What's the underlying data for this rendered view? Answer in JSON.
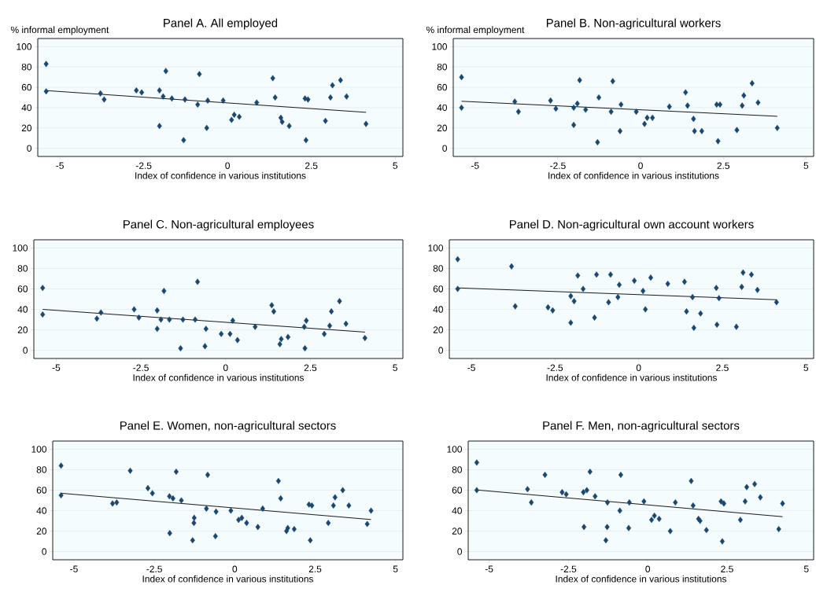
{
  "chart_data": [
    {
      "type": "scatter",
      "title": "Panel A. All employed",
      "ylabel": "% informal employment",
      "xlabel": "Index of confidence in various institutions",
      "xlim": [
        -5.66,
        5.23
      ],
      "ylim": [
        -8,
        108
      ],
      "xticks": [
        -5,
        -2.5,
        0,
        2.5,
        5
      ],
      "yticks": [
        0,
        20,
        40,
        60,
        80,
        100
      ],
      "grid": "y",
      "series": [
        {
          "marker": "diamond",
          "color": "#1a476f",
          "x": [
            -5.41,
            -5.41,
            -3.79,
            -3.68,
            -2.72,
            -2.56,
            -2.03,
            -2.03,
            -1.92,
            -1.84,
            -1.66,
            -1.31,
            -1.27,
            -0.84,
            -0.89,
            -0.62,
            -0.59,
            -0.13,
            0.12,
            0.2,
            0.35,
            0.87,
            1.35,
            1.42,
            1.59,
            1.63,
            1.84,
            2.31,
            2.4,
            2.34,
            2.92,
            3.07,
            3.13,
            3.37,
            3.55,
            4.13
          ],
          "values": [
            83,
            56,
            54,
            48,
            57,
            55,
            57,
            22,
            51,
            76,
            49,
            8,
            48,
            73,
            43,
            20,
            47,
            47,
            28,
            33,
            31,
            45,
            69,
            50,
            30,
            26,
            22,
            49,
            48,
            8,
            27,
            50,
            62,
            67,
            51,
            24
          ]
        },
        {
          "type": "line",
          "marker": "none",
          "color": "#000000",
          "x": [
            -5.41,
            4.13
          ],
          "values": [
            56.8,
            35.4
          ]
        }
      ]
    },
    {
      "type": "scatter",
      "title": "Panel B. Non-agricultural workers",
      "ylabel": "% informal employment",
      "xlabel": "Index of confidence in various institutions",
      "xlim": [
        -5.66,
        5.23
      ],
      "ylim": [
        -8,
        108
      ],
      "xticks": [
        -5,
        -2.5,
        0,
        2.5,
        5
      ],
      "yticks": [
        0,
        20,
        40,
        60,
        80,
        100
      ],
      "grid": "y",
      "series": [
        {
          "marker": "diamond",
          "color": "#1a476f",
          "x": [
            -5.41,
            -5.41,
            -3.8,
            -3.69,
            -2.72,
            -2.56,
            -2.02,
            -2.02,
            -1.91,
            -1.84,
            -1.66,
            -1.3,
            -1.26,
            -0.84,
            -0.89,
            -0.62,
            -0.59,
            -0.13,
            0.12,
            0.2,
            0.36,
            0.87,
            1.36,
            1.42,
            1.6,
            1.63,
            1.85,
            2.3,
            2.4,
            2.34,
            2.91,
            3.07,
            3.12,
            3.37,
            3.55,
            4.13
          ],
          "values": [
            70,
            40,
            46,
            36,
            47,
            39,
            40,
            23,
            44,
            67,
            38,
            6,
            50,
            66,
            36,
            17,
            43,
            36,
            24,
            30,
            30,
            41,
            55,
            42,
            29,
            17,
            17,
            43,
            43,
            7,
            18,
            42,
            52,
            64,
            45,
            20
          ]
        },
        {
          "type": "line",
          "marker": "none",
          "color": "#000000",
          "x": [
            -5.41,
            4.13
          ],
          "values": [
            46.3,
            31.5
          ]
        }
      ]
    },
    {
      "type": "scatter",
      "title": "Panel C. Non-agricultural employees",
      "xlabel": "Index of confidence in various institutions",
      "xlim": [
        -5.66,
        5.23
      ],
      "ylim": [
        -8,
        108
      ],
      "xticks": [
        -5,
        -2.5,
        0,
        2.5,
        5
      ],
      "yticks": [
        0,
        20,
        40,
        60,
        80,
        100
      ],
      "grid": "y",
      "series": [
        {
          "marker": "diamond",
          "color": "#1a476f",
          "x": [
            -5.4,
            -5.4,
            -3.8,
            -3.68,
            -2.7,
            -2.56,
            -2.02,
            -2.02,
            -1.91,
            -1.82,
            -1.66,
            -1.33,
            -1.26,
            -0.83,
            -0.9,
            -0.61,
            -0.58,
            -0.13,
            0.13,
            0.21,
            0.35,
            0.87,
            1.36,
            1.42,
            1.6,
            1.64,
            1.84,
            2.32,
            2.38,
            2.34,
            2.91,
            3.07,
            3.12,
            3.36,
            3.55,
            4.11
          ],
          "values": [
            61,
            35,
            31,
            37,
            40,
            32,
            39,
            21,
            30,
            58,
            30,
            2,
            30,
            67,
            30,
            4,
            21,
            16,
            16,
            29,
            10,
            23,
            44,
            38,
            6,
            11,
            13,
            23,
            29,
            2,
            16,
            24,
            38,
            48,
            26,
            12
          ]
        },
        {
          "type": "line",
          "marker": "none",
          "color": "#000000",
          "x": [
            -5.4,
            4.11
          ],
          "values": [
            40,
            17.8
          ]
        }
      ]
    },
    {
      "type": "scatter",
      "title": "Panel D. Non-agricultural own account workers",
      "xlabel": "Index of confidence in various institutions",
      "xlim": [
        -5.66,
        5.23
      ],
      "ylim": [
        -8,
        108
      ],
      "xticks": [
        -5,
        -2.5,
        0,
        2.5,
        5
      ],
      "yticks": [
        0,
        20,
        40,
        60,
        80,
        100
      ],
      "grid": "y",
      "series": [
        {
          "marker": "diamond",
          "color": "#1a476f",
          "x": [
            -5.41,
            -5.41,
            -3.8,
            -3.69,
            -2.71,
            -2.57,
            -2.03,
            -2.03,
            -1.93,
            -1.82,
            -1.66,
            -1.32,
            -1.26,
            -0.84,
            -0.9,
            -0.62,
            -0.58,
            -0.13,
            0.13,
            0.2,
            0.36,
            0.87,
            1.37,
            1.43,
            1.61,
            1.65,
            1.85,
            2.32,
            2.4,
            2.34,
            2.92,
            3.08,
            3.12,
            3.37,
            3.55,
            4.12
          ],
          "values": [
            89,
            60,
            82,
            43,
            42,
            39,
            53,
            27,
            48,
            73,
            60,
            32,
            74,
            74,
            47,
            52,
            64,
            68,
            58,
            40,
            71,
            65,
            67,
            38,
            52,
            22,
            36,
            61,
            51,
            25,
            23,
            62,
            76,
            74,
            59,
            47
          ]
        },
        {
          "type": "line",
          "marker": "none",
          "color": "#000000",
          "x": [
            -5.41,
            4.12
          ],
          "values": [
            61,
            49.4
          ]
        }
      ]
    },
    {
      "type": "scatter",
      "title": "Panel E. Women, non-agricultural sectors",
      "xlabel": "Index of confidence in various institutions",
      "xlim": [
        -5.66,
        5.23
      ],
      "ylim": [
        -8,
        108
      ],
      "xticks": [
        -5,
        -2.5,
        0,
        2.5,
        5
      ],
      "yticks": [
        0,
        20,
        40,
        60,
        80,
        100
      ],
      "grid": "y",
      "series": [
        {
          "marker": "diamond",
          "color": "#1a476f",
          "x": [
            -5.4,
            -5.4,
            -3.8,
            -3.67,
            -3.25,
            -2.7,
            -2.56,
            -2.03,
            -2.02,
            -1.92,
            -1.82,
            -1.66,
            -1.31,
            -1.27,
            -1.26,
            -0.88,
            -0.84,
            -0.6,
            -0.58,
            -0.12,
            0.12,
            0.22,
            0.37,
            0.72,
            0.87,
            1.36,
            1.43,
            1.61,
            1.65,
            1.85,
            2.31,
            2.4,
            2.35,
            2.91,
            3.07,
            3.12,
            3.36,
            3.55,
            4.12,
            4.24
          ],
          "values": [
            84,
            55,
            47,
            48,
            79,
            62,
            57,
            54,
            18,
            52,
            78,
            50,
            11,
            28,
            33,
            42,
            75,
            15,
            39,
            40,
            31,
            33,
            28,
            24,
            42,
            69,
            52,
            20,
            23,
            22,
            46,
            45,
            11,
            28,
            45,
            53,
            60,
            45,
            27,
            40
          ]
        },
        {
          "type": "line",
          "marker": "none",
          "color": "#000000",
          "x": [
            -5.4,
            4.24
          ],
          "values": [
            57,
            31.3
          ]
        }
      ]
    },
    {
      "type": "scatter",
      "title": "Panel F. Men, non-agricultural sectors",
      "xlabel": "Index of confidence in various institutions",
      "xlim": [
        -5.66,
        5.23
      ],
      "ylim": [
        -8,
        108
      ],
      "xticks": [
        -5,
        -2.5,
        0,
        2.5,
        5
      ],
      "yticks": [
        0,
        20,
        40,
        60,
        80,
        100
      ],
      "grid": "y",
      "series": [
        {
          "marker": "diamond",
          "color": "#1a476f",
          "x": [
            -5.39,
            -5.39,
            -3.79,
            -3.67,
            -3.24,
            -2.7,
            -2.57,
            -2.03,
            -2.01,
            -1.92,
            -1.82,
            -1.66,
            -1.32,
            -1.28,
            -1.27,
            -0.88,
            -0.85,
            -0.6,
            -0.58,
            -0.12,
            0.12,
            0.21,
            0.36,
            0.71,
            0.87,
            1.37,
            1.43,
            1.6,
            1.65,
            1.85,
            2.31,
            2.4,
            2.35,
            2.92,
            3.07,
            3.12,
            3.37,
            3.55,
            4.13,
            4.25
          ],
          "values": [
            87,
            60,
            61,
            48,
            75,
            58,
            56,
            58,
            24,
            60,
            78,
            54,
            11,
            24,
            48,
            40,
            75,
            23,
            48,
            49,
            31,
            35,
            32,
            20,
            48,
            69,
            45,
            32,
            30,
            21,
            49,
            47,
            10,
            31,
            49,
            63,
            66,
            53,
            22,
            47
          ]
        },
        {
          "type": "line",
          "marker": "none",
          "color": "#000000",
          "x": [
            -5.39,
            4.25
          ],
          "values": [
            60.2,
            34.1
          ]
        }
      ]
    }
  ]
}
